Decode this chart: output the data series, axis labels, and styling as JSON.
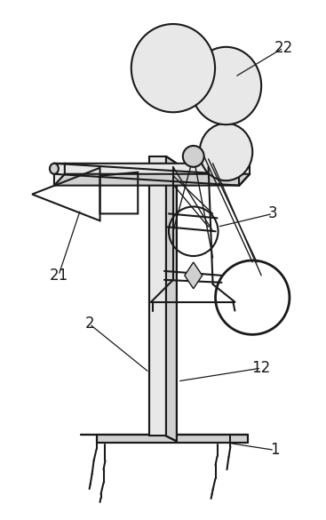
{
  "bg_color": "#ffffff",
  "line_color": "#1a1a1a",
  "lw": 1.5,
  "lw_thin": 1.0,
  "fill_light": "#e8e8e8",
  "fill_mid": "#d0d0d0",
  "fill_dark": "#b8b8b8",
  "label_fontsize": 12,
  "fig_w": 3.67,
  "fig_h": 5.85,
  "dpi": 100
}
